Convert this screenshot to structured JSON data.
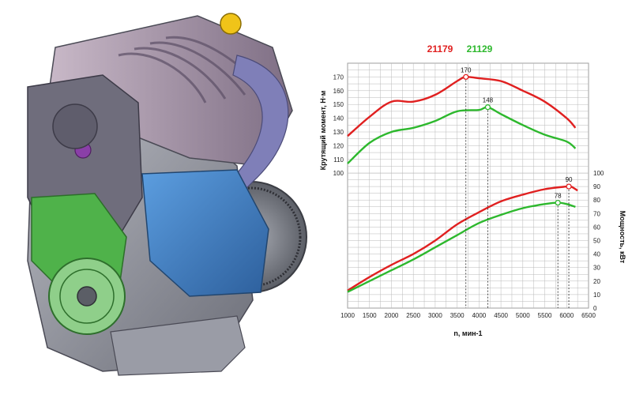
{
  "chart_data": {
    "type": "line",
    "title": "",
    "xlabel": "n, мин-1",
    "ylabel": "Крутящий момент, Н·м",
    "y2label": "Мощность, кВт",
    "xlim": [
      1000,
      6500
    ],
    "ylim_torque": [
      90,
      180
    ],
    "ylim_power": [
      0,
      100
    ],
    "x_ticks": [
      "1000",
      "1500",
      "2000",
      "2500",
      "3000",
      "3500",
      "4000",
      "4500",
      "5000",
      "5500",
      "6000",
      "6500"
    ],
    "torque_ticks": [
      "100",
      "110",
      "120",
      "130",
      "140",
      "150",
      "160",
      "170"
    ],
    "power_ticks": [
      "0",
      "10",
      "20",
      "30",
      "40",
      "50",
      "60",
      "70",
      "80",
      "90",
      "100"
    ],
    "grid": true,
    "legend": "top",
    "series": [
      {
        "name": "21179",
        "color": "#e02020",
        "quantity": "torque",
        "x": [
          1000,
          1500,
          2000,
          2500,
          3000,
          3500,
          3700,
          4000,
          4500,
          5000,
          5500,
          6000,
          6200
        ],
        "y": [
          127,
          141,
          152,
          152,
          157,
          167,
          170,
          169,
          167,
          160,
          152,
          140,
          133
        ]
      },
      {
        "name": "21129",
        "color": "#2db82d",
        "quantity": "torque",
        "x": [
          1000,
          1500,
          2000,
          2500,
          3000,
          3500,
          4000,
          4200,
          4500,
          5000,
          5500,
          6000,
          6200
        ],
        "y": [
          107,
          122,
          130,
          133,
          138,
          145,
          146,
          148,
          143,
          135,
          128,
          123,
          118
        ]
      },
      {
        "name": "21179",
        "color": "#e02020",
        "quantity": "power",
        "x": [
          1000,
          1500,
          2000,
          2500,
          3000,
          3500,
          4000,
          4500,
          5000,
          5500,
          6000,
          6100,
          6250
        ],
        "y": [
          13,
          23,
          32,
          40,
          50,
          62,
          71,
          79,
          84,
          88,
          90,
          90,
          87
        ]
      },
      {
        "name": "21129",
        "color": "#2db82d",
        "quantity": "power",
        "x": [
          1000,
          1500,
          2000,
          2500,
          3000,
          3500,
          4000,
          4500,
          5000,
          5500,
          5800,
          6000,
          6200
        ],
        "y": [
          12,
          20,
          28,
          36,
          45,
          54,
          63,
          69,
          74,
          77,
          78,
          77,
          75
        ]
      }
    ],
    "annotations": [
      {
        "label": "170",
        "x": 3700,
        "y": 170,
        "quantity": "torque",
        "color": "#e02020"
      },
      {
        "label": "148",
        "x": 4200,
        "y": 148,
        "quantity": "torque",
        "color": "#2db82d"
      },
      {
        "label": "90",
        "x": 6050,
        "y": 90,
        "quantity": "power",
        "color": "#e02020"
      },
      {
        "label": "78",
        "x": 5800,
        "y": 78,
        "quantity": "power",
        "color": "#2db82d"
      }
    ],
    "legend_entries": [
      {
        "label": "21179",
        "color": "#e02020"
      },
      {
        "label": "21129",
        "color": "#2db82d"
      }
    ]
  },
  "illustration": {
    "subject": "engine-3d-render",
    "palette": {
      "block": "#8a8d96",
      "cover": "#6f6d7c",
      "intake": "#9b8a9e",
      "green_cover": "#4fb24a",
      "blue_parts": "#3f7fc6",
      "pulley": "#8fcf8a",
      "shadow": "#4a4a55"
    }
  }
}
